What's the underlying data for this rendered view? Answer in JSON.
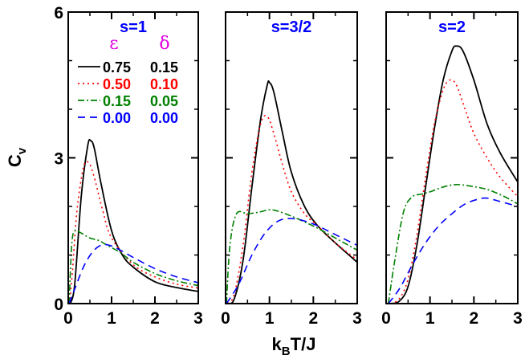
{
  "chart_data": {
    "type": "line",
    "ylabel_main": "C",
    "ylabel_sub": "v",
    "xlabel_main": "k",
    "xlabel_sub": "B",
    "xlabel_rest": "T/J",
    "xlim": [
      0,
      3
    ],
    "ylim": [
      0,
      6
    ],
    "x_ticks": [
      "0",
      "1",
      "2",
      "3"
    ],
    "y_ticks": [
      {
        "value": 0,
        "label": "0"
      },
      {
        "value": 3,
        "label": "3"
      },
      {
        "value": 6,
        "label": "6"
      }
    ],
    "legend": {
      "location": "upper-left of first panel",
      "headers": [
        "ε",
        "δ"
      ],
      "header_colors": [
        "#e000e0",
        "#e000e0"
      ],
      "entries": [
        {
          "eps": "0.75",
          "delta": "0.15",
          "color": "#000000",
          "dash": "solid"
        },
        {
          "eps": "0.50",
          "delta": "0.10",
          "color": "#ff0000",
          "dash": "dotted"
        },
        {
          "eps": "0.15",
          "delta": "0.05",
          "color": "#008000",
          "dash": "dashdot"
        },
        {
          "eps": "0.00",
          "delta": "0.00",
          "color": "#0000ff",
          "dash": "dashed"
        }
      ]
    },
    "panels": [
      {
        "title": "s=1",
        "title_color": "#0000ff",
        "series": [
          {
            "name": "ε=0.75 δ=0.15",
            "x": [
              0.05,
              0.15,
              0.3,
              0.45,
              0.52,
              0.6,
              0.75,
              1.0,
              1.25,
              1.5,
              2.0,
              2.5,
              3.0
            ],
            "y": [
              0.0,
              0.4,
              2.2,
              3.25,
              3.35,
              3.2,
              2.5,
              1.5,
              1.0,
              0.75,
              0.45,
              0.33,
              0.25
            ]
          },
          {
            "name": "ε=0.50 δ=0.10",
            "x": [
              0.03,
              0.1,
              0.2,
              0.35,
              0.47,
              0.6,
              0.8,
              1.0,
              1.5,
              2.0,
              2.5,
              3.0
            ],
            "y": [
              0.0,
              0.7,
              1.9,
              2.8,
              2.9,
              2.6,
              1.9,
              1.35,
              0.8,
              0.55,
              0.4,
              0.32
            ]
          },
          {
            "name": "ε=0.15 δ=0.05",
            "x": [
              0.02,
              0.08,
              0.15,
              0.3,
              0.5,
              0.7,
              0.9,
              1.2,
              1.5,
              2.0,
              2.5,
              3.0
            ],
            "y": [
              0.0,
              1.2,
              1.5,
              1.45,
              1.35,
              1.3,
              1.2,
              1.05,
              0.85,
              0.62,
              0.47,
              0.37
            ]
          },
          {
            "name": "ε=0.00 δ=0.00",
            "x": [
              0.02,
              0.15,
              0.35,
              0.55,
              0.75,
              0.95,
              1.2,
              1.5,
              2.0,
              2.5,
              3.0
            ],
            "y": [
              0.0,
              0.3,
              0.75,
              1.05,
              1.2,
              1.2,
              1.1,
              0.95,
              0.72,
              0.55,
              0.43
            ]
          }
        ]
      },
      {
        "title": "s=3/2",
        "title_color": "#0000ff",
        "series": [
          {
            "name": "ε=0.75 δ=0.15",
            "x": [
              0.05,
              0.2,
              0.4,
              0.6,
              0.8,
              0.95,
              1.0,
              1.1,
              1.3,
              1.5,
              1.8,
              2.1,
              2.5,
              3.0
            ],
            "y": [
              0.0,
              0.1,
              0.9,
              2.4,
              3.8,
              4.5,
              4.55,
              4.35,
              3.5,
              2.7,
              2.0,
              1.6,
              1.25,
              0.85
            ]
          },
          {
            "name": "ε=0.50 δ=0.10",
            "x": [
              0.05,
              0.2,
              0.4,
              0.6,
              0.8,
              0.95,
              1.1,
              1.3,
              1.5,
              1.8,
              2.1,
              2.5,
              3.0
            ],
            "y": [
              0.0,
              0.2,
              1.2,
              2.7,
              3.7,
              3.85,
              3.5,
              2.85,
              2.3,
              1.85,
              1.6,
              1.25,
              0.9
            ]
          },
          {
            "name": "ε=0.15 δ=0.05",
            "x": [
              0.02,
              0.1,
              0.25,
              0.5,
              0.75,
              1.0,
              1.2,
              1.5,
              1.8,
              2.1,
              2.5,
              3.0
            ],
            "y": [
              0.0,
              1.2,
              1.85,
              1.85,
              1.88,
              1.93,
              1.9,
              1.8,
              1.68,
              1.55,
              1.35,
              1.1
            ]
          },
          {
            "name": "ε=0.00 δ=0.00",
            "x": [
              0.02,
              0.3,
              0.6,
              0.9,
              1.2,
              1.5,
              1.8,
              2.1,
              2.5,
              3.0
            ],
            "y": [
              0.0,
              0.4,
              1.0,
              1.45,
              1.7,
              1.75,
              1.7,
              1.6,
              1.42,
              1.2
            ]
          }
        ]
      },
      {
        "title": "s=2",
        "title_color": "#0000ff",
        "series": [
          {
            "name": "ε=0.75 δ=0.15",
            "x": [
              0.1,
              0.3,
              0.5,
              0.7,
              0.9,
              1.1,
              1.3,
              1.5,
              1.6,
              1.75,
              2.0,
              2.3,
              2.6,
              3.0
            ],
            "y": [
              0.0,
              0.05,
              0.35,
              1.2,
              2.4,
              3.6,
              4.6,
              5.2,
              5.3,
              5.2,
              4.6,
              3.7,
              3.1,
              2.5
            ]
          },
          {
            "name": "ε=0.50 δ=0.10",
            "x": [
              0.1,
              0.3,
              0.5,
              0.7,
              0.9,
              1.1,
              1.3,
              1.45,
              1.6,
              1.8,
              2.0,
              2.3,
              2.6,
              3.0
            ],
            "y": [
              0.0,
              0.1,
              0.5,
              1.4,
              2.6,
              3.7,
              4.4,
              4.6,
              4.5,
              4.0,
              3.5,
              3.0,
              2.6,
              2.2
            ]
          },
          {
            "name": "ε=0.15 δ=0.05",
            "x": [
              0.05,
              0.2,
              0.4,
              0.6,
              0.8,
              1.0,
              1.3,
              1.6,
              1.9,
              2.3,
              2.7,
              3.0
            ],
            "y": [
              0.0,
              0.9,
              1.9,
              2.2,
              2.25,
              2.3,
              2.4,
              2.45,
              2.42,
              2.35,
              2.2,
              2.05
            ]
          },
          {
            "name": "ε=0.00 δ=0.00",
            "x": [
              0.05,
              0.3,
              0.6,
              0.9,
              1.2,
              1.5,
              1.8,
              2.1,
              2.3,
              2.6,
              3.0
            ],
            "y": [
              0.0,
              0.3,
              0.8,
              1.25,
              1.6,
              1.85,
              2.05,
              2.15,
              2.17,
              2.1,
              2.0
            ]
          }
        ]
      }
    ]
  }
}
